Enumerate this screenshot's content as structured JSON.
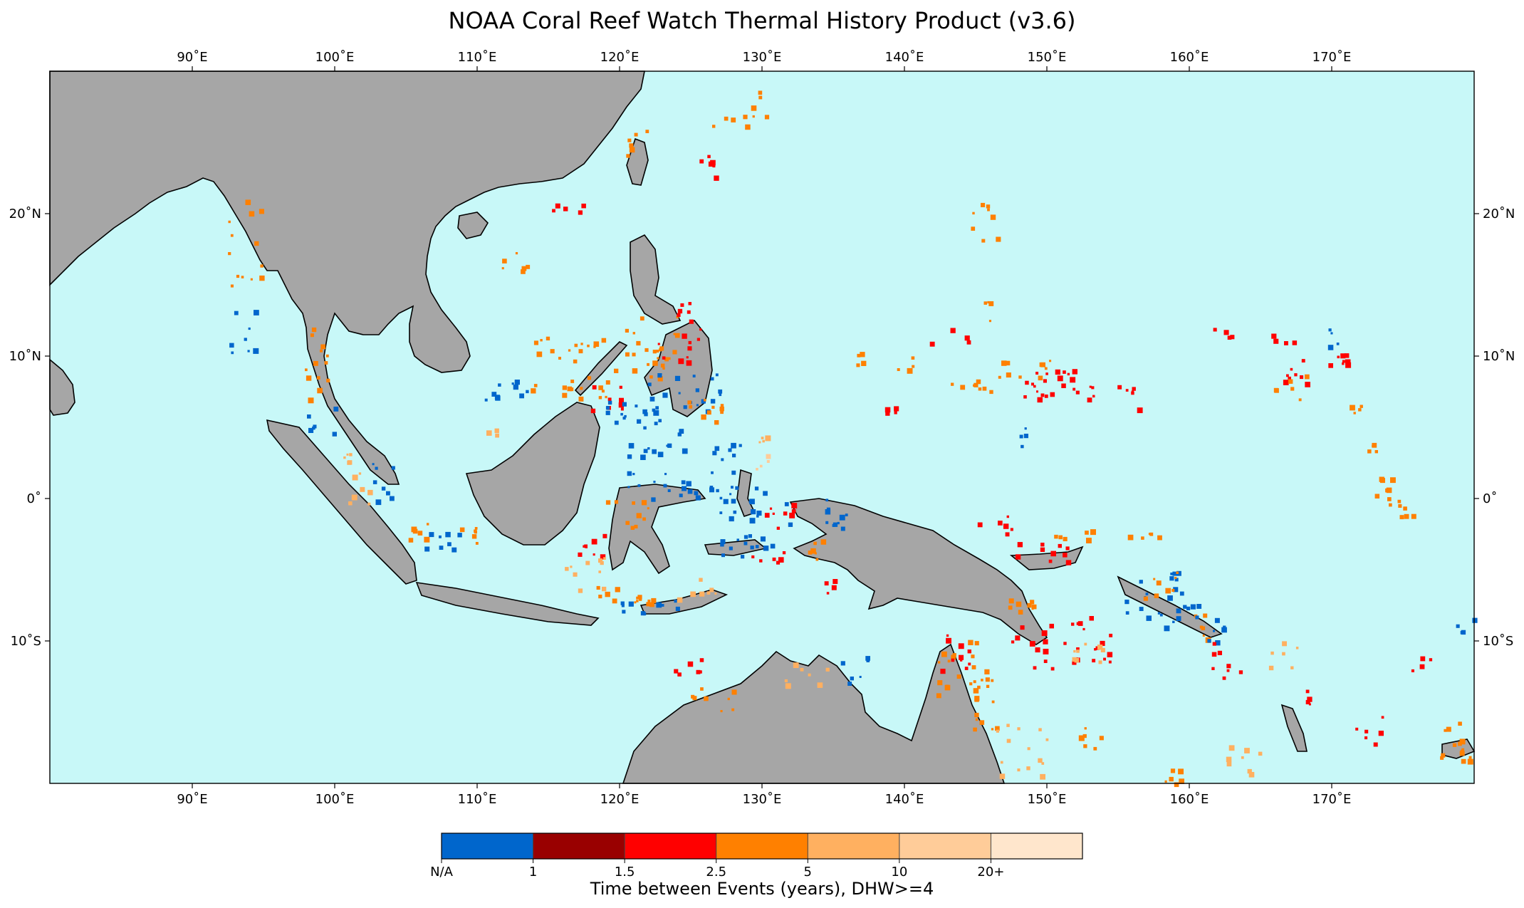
{
  "title": "NOAA Coral Reef Watch Thermal History Product (v3.6)",
  "map": {
    "lon_range": [
      80,
      180
    ],
    "lat_range": [
      -20,
      30
    ],
    "lon_ticks": [
      {
        "lon": 90,
        "label": "90˚E"
      },
      {
        "lon": 100,
        "label": "100˚E"
      },
      {
        "lon": 110,
        "label": "110˚E"
      },
      {
        "lon": 120,
        "label": "120˚E"
      },
      {
        "lon": 130,
        "label": "130˚E"
      },
      {
        "lon": 140,
        "label": "140˚E"
      },
      {
        "lon": 150,
        "label": "150˚E"
      },
      {
        "lon": 160,
        "label": "160˚E"
      },
      {
        "lon": 170,
        "label": "170˚E"
      }
    ],
    "lat_ticks": [
      {
        "lat": 20,
        "label": "20˚N"
      },
      {
        "lat": 10,
        "label": "10˚N"
      },
      {
        "lat": 0,
        "label": "0˚"
      },
      {
        "lat": -10,
        "label": "10˚S"
      }
    ],
    "ocean_color": "#c8f8f8",
    "land_color": "#a6a6a6",
    "coast_color": "#000000"
  },
  "colorbar": {
    "label": "Time between Events (years), DHW>=4",
    "bins": [
      {
        "color": "#0066cc",
        "tick": "N/A"
      },
      {
        "color": "#990000",
        "tick": "1"
      },
      {
        "color": "#ff0000",
        "tick": "1.5"
      },
      {
        "color": "#ff8000",
        "tick": "2.5"
      },
      {
        "color": "#ffb060",
        "tick": "5"
      },
      {
        "color": "#ffcc99",
        "tick": "10"
      },
      {
        "color": "#ffe6cc",
        "tick": "20+"
      }
    ]
  }
}
